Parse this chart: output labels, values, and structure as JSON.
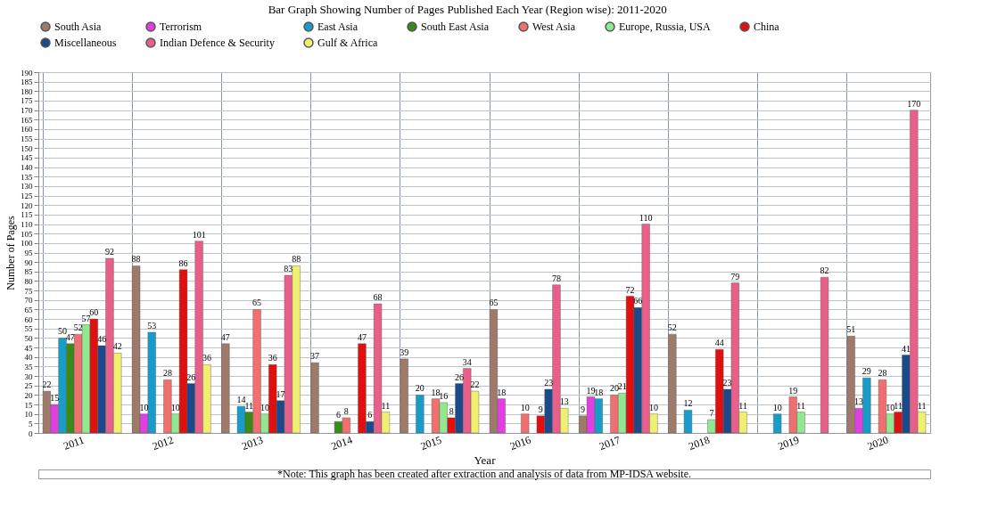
{
  "chart_data": {
    "type": "bar",
    "title": "Bar Graph Showing Number of Pages Published Each Year (Region wise): 2011-2020",
    "xlabel": "Year",
    "ylabel": "Number of Pages",
    "categories": [
      "2011",
      "2012",
      "2013",
      "2014",
      "2015",
      "2016",
      "2017",
      "2018",
      "2019",
      "2020"
    ],
    "series": [
      {
        "name": "South Asia",
        "color": "#9e7a6b",
        "values": [
          22,
          88,
          47,
          37,
          39,
          65,
          9,
          52,
          null,
          51
        ]
      },
      {
        "name": "Terrorism",
        "color": "#e040e0",
        "values": [
          15,
          10,
          null,
          null,
          null,
          18,
          19,
          null,
          null,
          13
        ]
      },
      {
        "name": "East Asia",
        "color": "#1a9cc8",
        "values": [
          50,
          53,
          14,
          null,
          20,
          null,
          18,
          12,
          10,
          29
        ]
      },
      {
        "name": "South East Asia",
        "color": "#3a8a1a",
        "values": [
          47,
          null,
          11,
          6,
          null,
          null,
          null,
          null,
          null,
          null
        ]
      },
      {
        "name": "West Asia",
        "color": "#f07070",
        "values": [
          52,
          28,
          65,
          8,
          18,
          10,
          20,
          null,
          19,
          28
        ]
      },
      {
        "name": "Europe, Russia, USA",
        "color": "#90e890",
        "values": [
          57,
          10,
          10,
          null,
          16,
          null,
          21,
          7,
          11,
          10
        ]
      },
      {
        "name": "China",
        "color": "#e01010",
        "values": [
          60,
          86,
          36,
          47,
          8,
          9,
          72,
          44,
          null,
          11
        ]
      },
      {
        "name": "Miscellaneous",
        "color": "#1a4a8a",
        "values": [
          46,
          26,
          17,
          6,
          26,
          23,
          66,
          23,
          null,
          41
        ]
      },
      {
        "name": "Indian Defence & Security",
        "color": "#e8608a",
        "values": [
          92,
          101,
          83,
          68,
          34,
          78,
          110,
          79,
          82,
          170
        ]
      },
      {
        "name": "Gulf & Africa",
        "color": "#f0f070",
        "values": [
          42,
          36,
          88,
          11,
          22,
          13,
          10,
          11,
          null,
          11
        ]
      }
    ],
    "ylim": [
      0,
      190
    ],
    "yticks": [
      0,
      5,
      10,
      15,
      20,
      25,
      30,
      35,
      40,
      45,
      50,
      55,
      60,
      65,
      70,
      75,
      80,
      85,
      90,
      95,
      100,
      105,
      110,
      115,
      120,
      125,
      130,
      135,
      140,
      145,
      150,
      155,
      160,
      165,
      170,
      175,
      180,
      185,
      190
    ],
    "grid": true,
    "legend": "top",
    "data_labels": true,
    "annotations": [
      "*Note: This graph has been created after extraction and analysis of data from MP-IDSA website."
    ]
  }
}
